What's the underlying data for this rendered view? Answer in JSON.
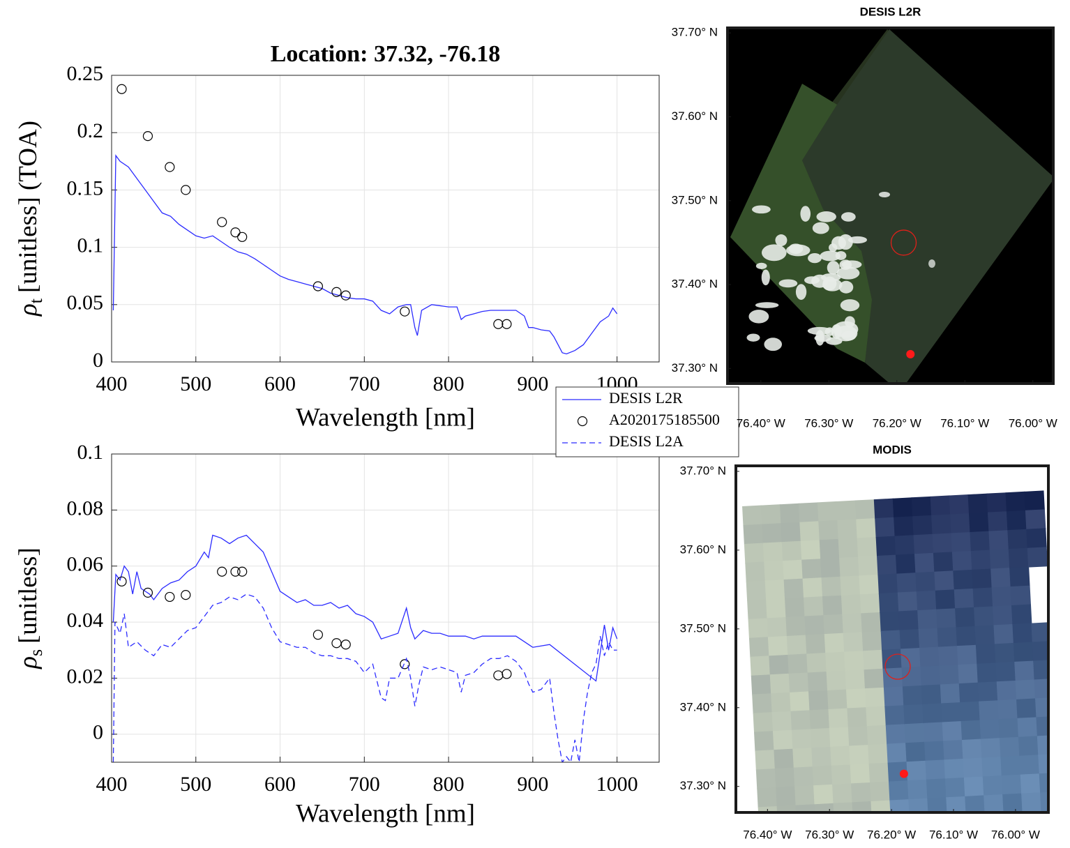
{
  "chart_data": [
    {
      "type": "line",
      "title": "Location: 37.32, -76.18",
      "ylabel_symbol": "ρ",
      "ylabel_subscript": "t",
      "ylabel": "[unitless] (TOA)",
      "xlabel": "Wavelength [nm]",
      "xlim": [
        400,
        1050
      ],
      "ylim": [
        0,
        0.25
      ],
      "xticks": [
        400,
        500,
        600,
        700,
        800,
        900,
        1000
      ],
      "yticks": [
        0,
        0.05,
        0.1,
        0.15,
        0.2,
        0.25
      ],
      "grid": true,
      "series": [
        {
          "style": "solid",
          "color": "#2b2bff",
          "x": [
            402,
            405,
            410,
            420,
            430,
            440,
            450,
            460,
            470,
            480,
            490,
            500,
            510,
            520,
            530,
            540,
            550,
            560,
            570,
            580,
            590,
            600,
            610,
            620,
            630,
            640,
            650,
            660,
            670,
            680,
            690,
            700,
            710,
            720,
            730,
            740,
            750,
            755,
            760,
            763,
            768,
            780,
            790,
            800,
            810,
            815,
            820,
            830,
            840,
            850,
            860,
            870,
            880,
            890,
            895,
            900,
            910,
            920,
            925,
            930,
            935,
            940,
            950,
            960,
            970,
            980,
            990,
            995,
            1000
          ],
          "values": [
            0.045,
            0.18,
            0.175,
            0.17,
            0.16,
            0.15,
            0.14,
            0.13,
            0.127,
            0.12,
            0.115,
            0.11,
            0.108,
            0.11,
            0.105,
            0.1,
            0.096,
            0.094,
            0.09,
            0.085,
            0.08,
            0.075,
            0.072,
            0.07,
            0.068,
            0.066,
            0.064,
            0.06,
            0.058,
            0.056,
            0.055,
            0.055,
            0.053,
            0.045,
            0.042,
            0.048,
            0.05,
            0.05,
            0.03,
            0.023,
            0.045,
            0.05,
            0.049,
            0.048,
            0.048,
            0.037,
            0.04,
            0.042,
            0.044,
            0.045,
            0.045,
            0.045,
            0.045,
            0.04,
            0.03,
            0.03,
            0.028,
            0.027,
            0.022,
            0.015,
            0.008,
            0.007,
            0.01,
            0.015,
            0.025,
            0.035,
            0.04,
            0.047,
            0.042
          ]
        },
        {
          "style": "circle",
          "color": "#000000",
          "x": [
            412,
            443,
            469,
            488,
            531,
            547,
            555,
            645,
            667,
            678,
            748,
            859,
            869
          ],
          "values": [
            0.238,
            0.197,
            0.17,
            0.15,
            0.122,
            0.113,
            0.109,
            0.066,
            0.061,
            0.058,
            0.044,
            0.033,
            0.033
          ]
        }
      ]
    },
    {
      "type": "line",
      "ylabel_symbol": "ρ",
      "ylabel_subscript": "s",
      "ylabel": "[unitless]",
      "xlabel": "Wavelength [nm]",
      "xlim": [
        400,
        1050
      ],
      "ylim": [
        -0.01,
        0.1
      ],
      "xticks": [
        400,
        500,
        600,
        700,
        800,
        900,
        1000
      ],
      "yticks": [
        0,
        0.02,
        0.04,
        0.06,
        0.08,
        0.1
      ],
      "grid": true,
      "legend": "outside",
      "series": [
        {
          "name": "DESIS L2R",
          "style": "solid",
          "color": "#2b2bff",
          "x": [
            402,
            405,
            410,
            415,
            420,
            425,
            430,
            435,
            440,
            445,
            450,
            460,
            470,
            480,
            490,
            500,
            510,
            515,
            520,
            530,
            540,
            550,
            560,
            570,
            580,
            590,
            600,
            610,
            620,
            630,
            640,
            650,
            660,
            670,
            680,
            690,
            700,
            710,
            720,
            730,
            740,
            750,
            755,
            760,
            770,
            780,
            790,
            800,
            810,
            820,
            830,
            840,
            850,
            860,
            870,
            880,
            890,
            900,
            920,
            975,
            985,
            990,
            995,
            1000
          ],
          "values": [
            0.04,
            0.057,
            0.055,
            0.06,
            0.058,
            0.05,
            0.058,
            0.052,
            0.051,
            0.05,
            0.048,
            0.052,
            0.054,
            0.055,
            0.058,
            0.06,
            0.065,
            0.063,
            0.071,
            0.07,
            0.068,
            0.07,
            0.071,
            0.068,
            0.065,
            0.058,
            0.051,
            0.049,
            0.047,
            0.048,
            0.046,
            0.046,
            0.047,
            0.045,
            0.046,
            0.043,
            0.042,
            0.04,
            0.034,
            0.035,
            0.036,
            0.045,
            0.038,
            0.034,
            0.037,
            0.036,
            0.036,
            0.035,
            0.035,
            0.035,
            0.034,
            0.035,
            0.035,
            0.035,
            0.035,
            0.035,
            0.033,
            0.031,
            0.032,
            0.019,
            0.039,
            0.03,
            0.038,
            0.034
          ]
        },
        {
          "name": "A2020175185500",
          "style": "circle",
          "color": "#000000",
          "x": [
            412,
            443,
            469,
            488,
            531,
            547,
            555,
            645,
            667,
            678,
            748,
            859,
            869
          ],
          "values": [
            0.0545,
            0.0505,
            0.049,
            0.0497,
            0.058,
            0.058,
            0.058,
            0.0355,
            0.0325,
            0.032,
            0.025,
            0.021,
            0.0215
          ]
        },
        {
          "name": "DESIS L2A",
          "style": "dashed",
          "color": "#2b2bff",
          "x": [
            402,
            404,
            410,
            415,
            420,
            430,
            440,
            450,
            460,
            470,
            480,
            490,
            500,
            510,
            520,
            530,
            540,
            550,
            560,
            570,
            580,
            590,
            600,
            610,
            620,
            630,
            640,
            650,
            660,
            670,
            680,
            690,
            700,
            710,
            720,
            725,
            730,
            740,
            750,
            755,
            760,
            765,
            770,
            780,
            790,
            800,
            810,
            815,
            820,
            830,
            840,
            850,
            860,
            870,
            880,
            890,
            895,
            900,
            910,
            920,
            925,
            930,
            935,
            940,
            945,
            950,
            955,
            960,
            965,
            970,
            975,
            980,
            985,
            990,
            995,
            1000
          ],
          "values": [
            -0.01,
            0.04,
            0.036,
            0.043,
            0.031,
            0.033,
            0.03,
            0.028,
            0.032,
            0.031,
            0.034,
            0.037,
            0.038,
            0.042,
            0.046,
            0.047,
            0.049,
            0.048,
            0.05,
            0.049,
            0.045,
            0.038,
            0.033,
            0.032,
            0.031,
            0.031,
            0.029,
            0.028,
            0.028,
            0.027,
            0.027,
            0.026,
            0.022,
            0.025,
            0.013,
            0.012,
            0.02,
            0.02,
            0.027,
            0.02,
            0.01,
            0.018,
            0.024,
            0.023,
            0.024,
            0.023,
            0.022,
            0.015,
            0.021,
            0.022,
            0.025,
            0.027,
            0.027,
            0.028,
            0.026,
            0.022,
            0.018,
            0.015,
            0.016,
            0.02,
            0.008,
            -0.002,
            -0.01,
            -0.008,
            -0.01,
            -0.002,
            -0.01,
            0.005,
            0.015,
            0.022,
            0.025,
            0.035,
            0.028,
            0.033,
            0.03,
            0.03
          ]
        }
      ]
    },
    {
      "type": "map",
      "title": "DESIS L2R",
      "xlim": [
        -76.449,
        -75.97
      ],
      "ylim": [
        37.282,
        37.706
      ],
      "xticks": [
        {
          "value": -76.4,
          "label": "76.40° W"
        },
        {
          "value": -76.3,
          "label": "76.30° W"
        },
        {
          "value": -76.2,
          "label": "76.20° W"
        },
        {
          "value": -76.1,
          "label": "76.10° W"
        },
        {
          "value": -76.0,
          "label": "76.00° W"
        }
      ],
      "yticks": [
        {
          "value": 37.3,
          "label": "37.30° N"
        },
        {
          "value": 37.4,
          "label": "37.40° N"
        },
        {
          "value": 37.5,
          "label": "37.50° N"
        },
        {
          "value": 37.6,
          "label": "37.60° N"
        },
        {
          "value": 37.7,
          "label": "37.70° N"
        }
      ],
      "markers": [
        {
          "shape": "ring",
          "color": "#e0201a",
          "x": -76.19,
          "y": 37.45
        },
        {
          "shape": "dot",
          "color": "#ff1a1a",
          "x": -76.18,
          "y": 37.317
        }
      ]
    },
    {
      "type": "map",
      "title": "MODIS",
      "xlim": [
        -76.451,
        -75.947
      ],
      "ylim": [
        37.267,
        37.707
      ],
      "xticks": [
        {
          "value": -76.4,
          "label": "76.40° W"
        },
        {
          "value": -76.3,
          "label": "76.30° W"
        },
        {
          "value": -76.2,
          "label": "76.20° W"
        },
        {
          "value": -76.1,
          "label": "76.10° W"
        },
        {
          "value": -76.0,
          "label": "76.00° W"
        }
      ],
      "yticks": [
        {
          "value": 37.3,
          "label": "37.30° N"
        },
        {
          "value": 37.4,
          "label": "37.40° N"
        },
        {
          "value": 37.5,
          "label": "37.50° N"
        },
        {
          "value": 37.6,
          "label": "37.60° N"
        },
        {
          "value": 37.7,
          "label": "37.70° N"
        }
      ],
      "markers": [
        {
          "shape": "ring",
          "color": "#e0201a",
          "x": -76.19,
          "y": 37.452
        },
        {
          "shape": "dot",
          "color": "#ff1a1a",
          "x": -76.18,
          "y": 37.316
        }
      ]
    }
  ]
}
